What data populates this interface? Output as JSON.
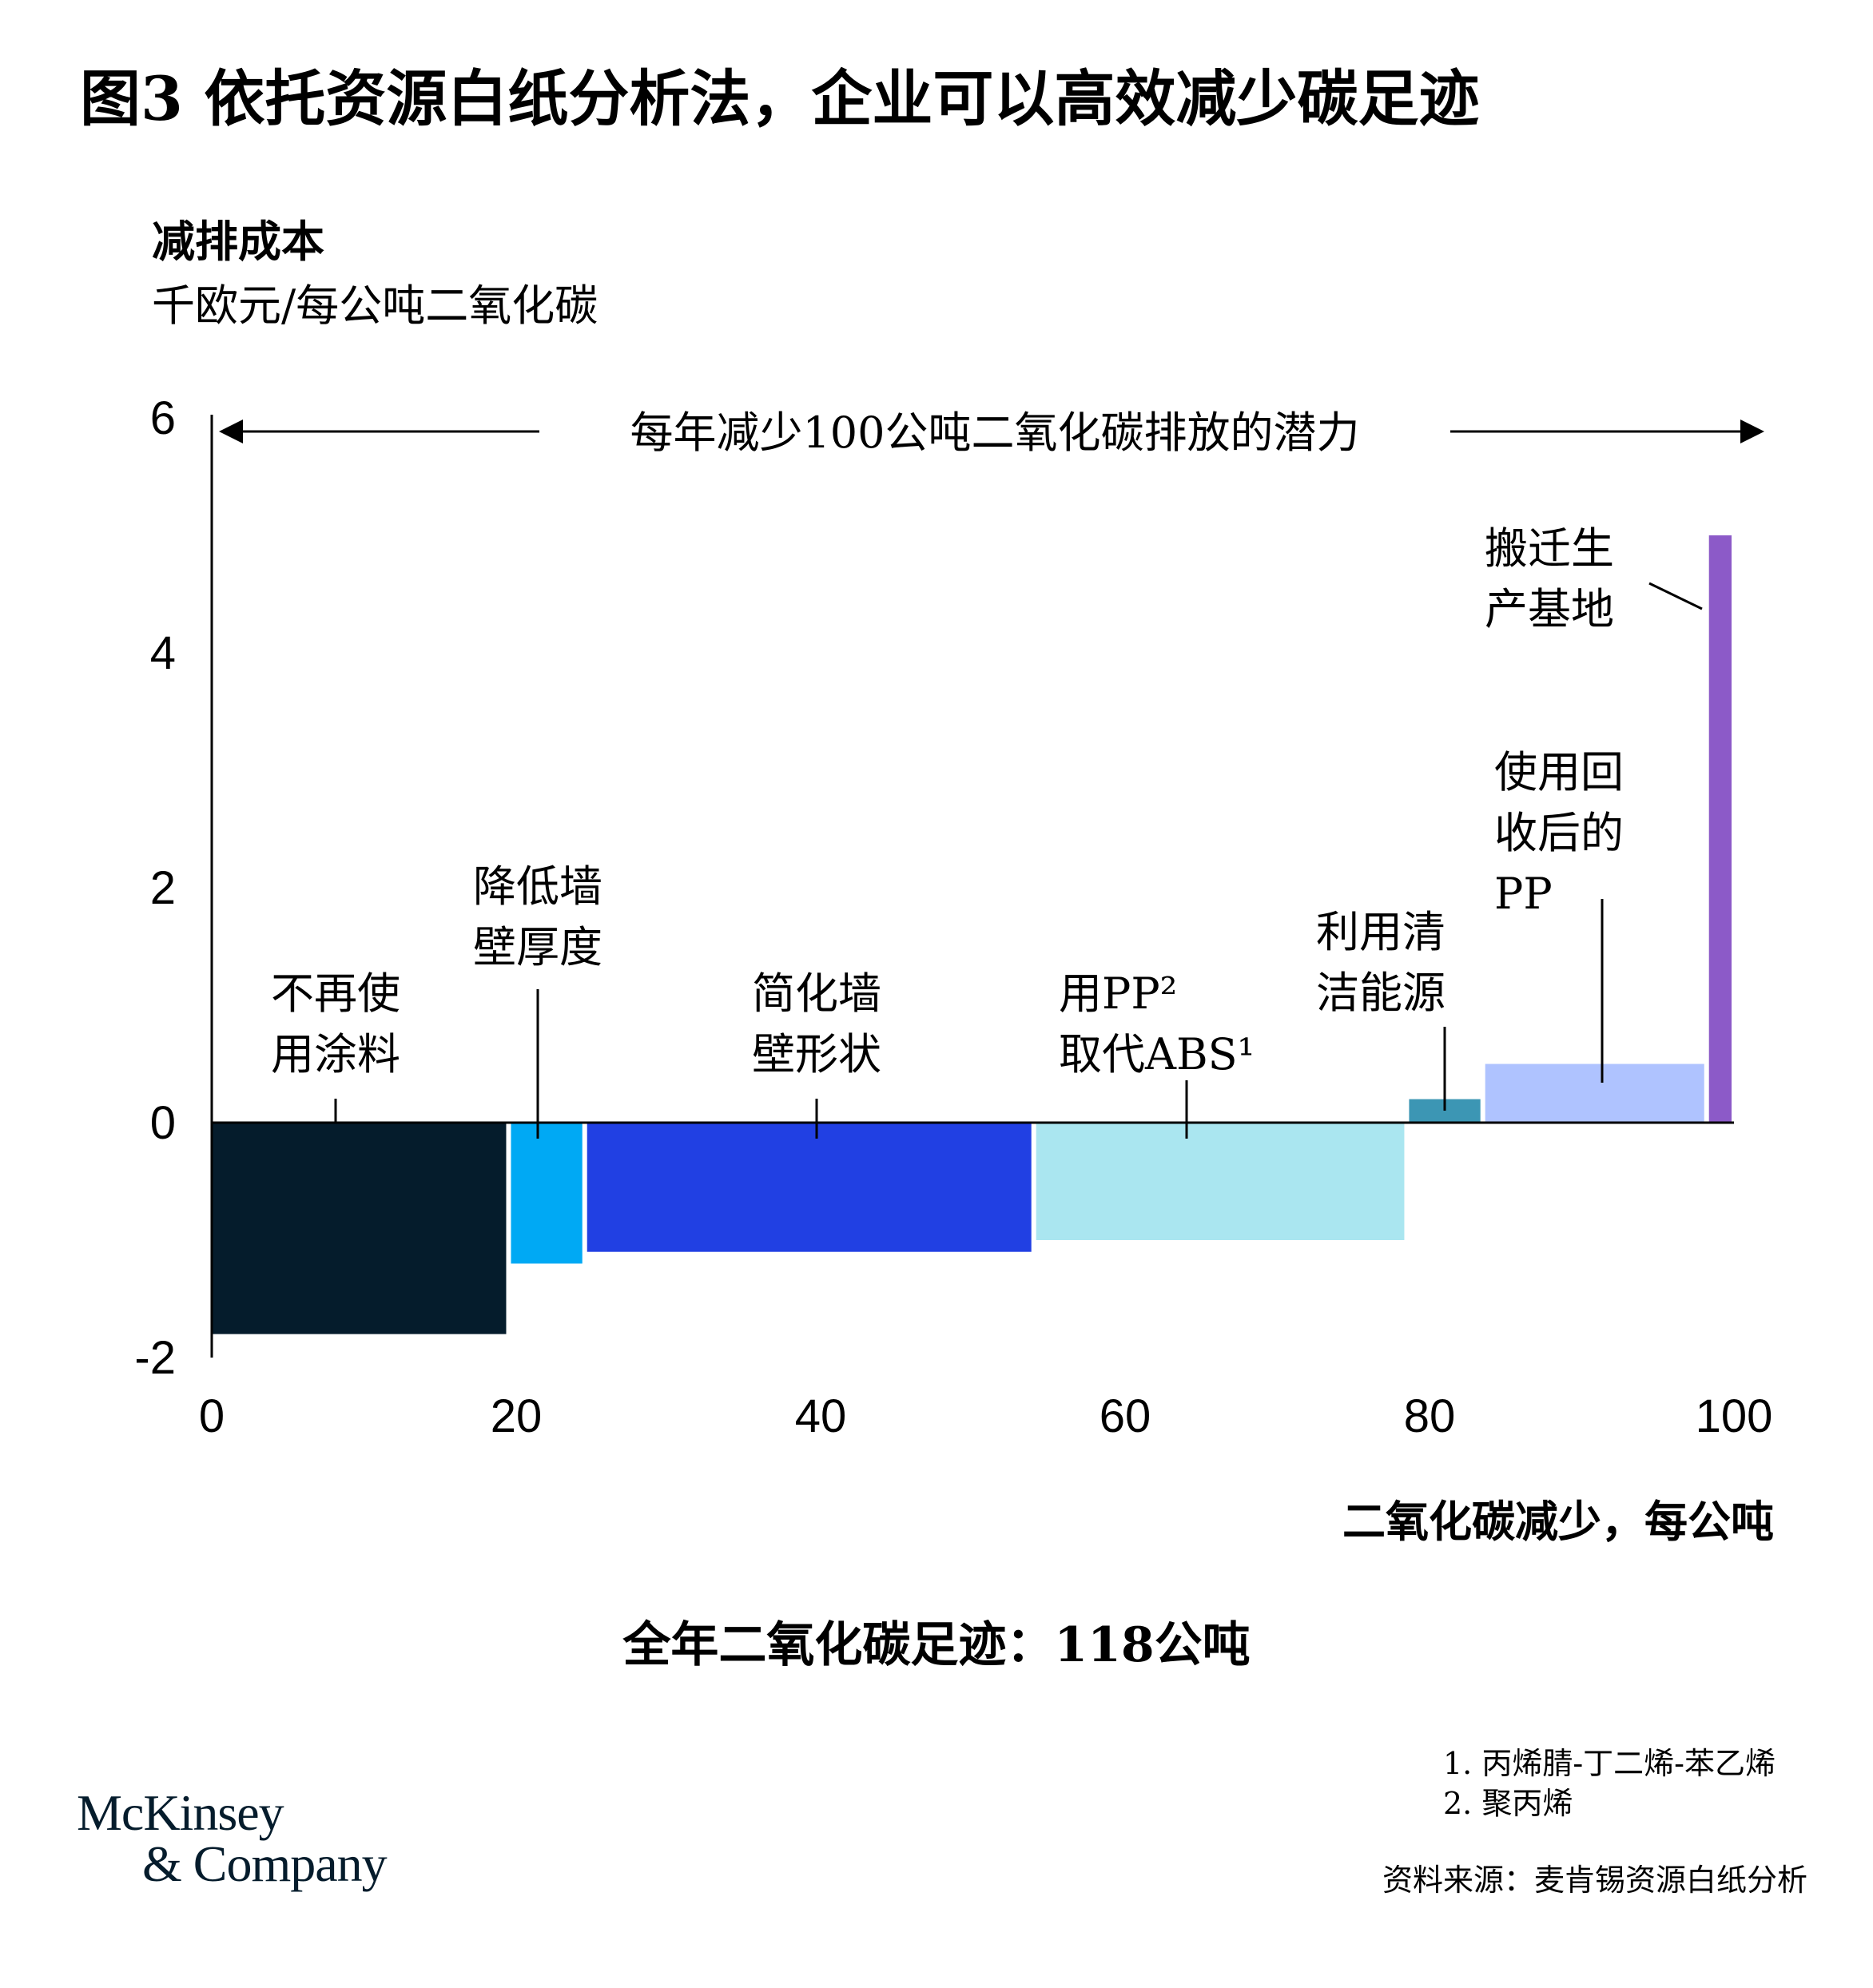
{
  "title": "图3 依托资源白纸分析法，企业可以高效减少碳足迹",
  "ylabel_title": "减排成本",
  "ylabel_unit": "千欧元/每公吨二氧化碳",
  "xlabel": "二氧化碳减少，每公吨",
  "total": "全年二氧化碳足迹：118公吨",
  "footnotes": [
    "1. 丙烯腈-丁二烯-苯乙烯",
    "2. 聚丙烯"
  ],
  "source": "资料来源：麦肯锡资源白纸分析",
  "logo": [
    "McKinsey",
    "& Company"
  ],
  "chart_data": {
    "type": "bar",
    "subtype": "marginal-abatement-cost-curve",
    "xlim": [
      0,
      100
    ],
    "ylim": [
      -2,
      6
    ],
    "xticks": [
      "0",
      "20",
      "40",
      "60",
      "80",
      "100"
    ],
    "yticks": [
      "6",
      "4",
      "2",
      "0",
      "-2"
    ],
    "arrow_annotation": "每年减少100公吨二氧化碳排放的潜力",
    "bars": [
      {
        "label": [
          "不再使",
          "用涂料"
        ],
        "x_start": 0,
        "x_end": 19.5,
        "value": -1.8,
        "color": "#051c2c"
      },
      {
        "label": [
          "降低墙",
          "壁厚度"
        ],
        "x_start": 19.5,
        "x_end": 24.5,
        "value": -1.2,
        "color": "#00a9f4"
      },
      {
        "label": [
          "简化墙",
          "壁形状"
        ],
        "x_start": 24.5,
        "x_end": 54,
        "value": -1.1,
        "color": "#2140e3"
      },
      {
        "label": [
          "用PP²",
          "取代ABS¹"
        ],
        "x_start": 54,
        "x_end": 78.5,
        "value": -1.0,
        "color": "#aae6f0"
      },
      {
        "label": [
          "利用清",
          "洁能源"
        ],
        "x_start": 78.5,
        "x_end": 83.5,
        "value": 0.2,
        "color": "#3c96b4"
      },
      {
        "label": [
          "使用回",
          "收后的",
          "PP"
        ],
        "x_start": 83.5,
        "x_end": 98.2,
        "value": 0.5,
        "color": "#afc3ff"
      },
      {
        "label": [
          "搬迁生",
          "产基地"
        ],
        "x_start": 98.2,
        "x_end": 100,
        "value": 5.0,
        "color": "#8c5ac8"
      }
    ]
  }
}
